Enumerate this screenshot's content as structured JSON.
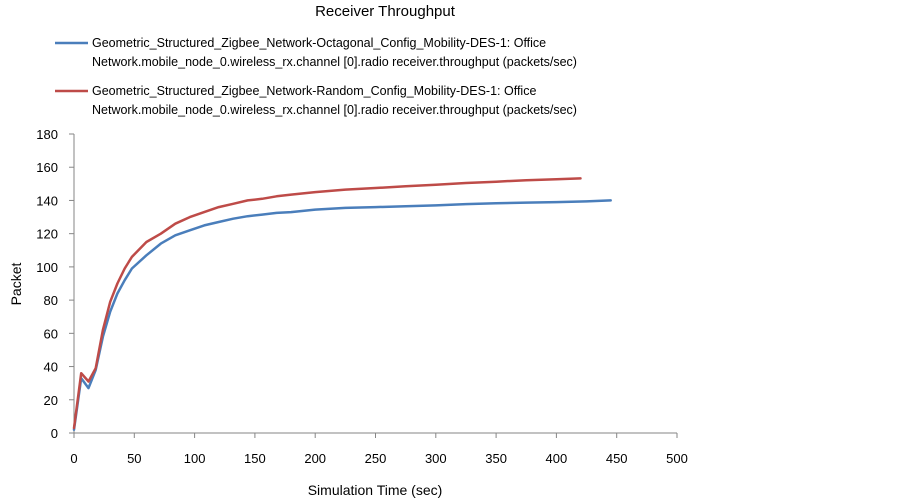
{
  "chart_data": {
    "type": "line",
    "title": "Receiver Throughput",
    "xlabel": "Simulation Time (sec)",
    "ylabel": "Packet",
    "xlim": [
      0,
      500
    ],
    "ylim": [
      0,
      180
    ],
    "x_ticks": [
      0,
      50,
      100,
      150,
      200,
      250,
      300,
      350,
      400,
      450,
      500
    ],
    "y_ticks": [
      0,
      20,
      40,
      60,
      80,
      100,
      120,
      140,
      160,
      180
    ],
    "grid": false,
    "legend_position": "top",
    "series": [
      {
        "name_lines": [
          "Geometric_Structured_Zigbee_Network-Octagonal_Config_Mobility-DES-1: Office",
          "Network.mobile_node_0.wireless_rx.channel [0].radio receiver.throughput (packets/sec)"
        ],
        "color": "#4a7ebb",
        "points": [
          [
            0,
            2
          ],
          [
            6,
            33
          ],
          [
            12,
            27
          ],
          [
            18,
            38
          ],
          [
            24,
            58
          ],
          [
            30,
            73
          ],
          [
            36,
            84
          ],
          [
            42,
            92
          ],
          [
            48,
            99
          ],
          [
            60,
            107
          ],
          [
            72,
            114
          ],
          [
            84,
            119
          ],
          [
            96,
            122
          ],
          [
            108,
            125
          ],
          [
            120,
            127
          ],
          [
            132,
            129
          ],
          [
            144,
            130.5
          ],
          [
            156,
            131.5
          ],
          [
            168,
            132.5
          ],
          [
            180,
            133
          ],
          [
            200,
            134.5
          ],
          [
            225,
            135.5
          ],
          [
            250,
            136
          ],
          [
            275,
            136.5
          ],
          [
            300,
            137
          ],
          [
            325,
            137.8
          ],
          [
            350,
            138.3
          ],
          [
            375,
            138.7
          ],
          [
            400,
            139
          ],
          [
            425,
            139.4
          ],
          [
            445,
            140
          ]
        ]
      },
      {
        "name_lines": [
          "Geometric_Structured_Zigbee_Network-Random_Config_Mobility-DES-1: Office",
          "Network.mobile_node_0.wireless_rx.channel [0].radio receiver.throughput (packets/sec)"
        ],
        "color": "#be4b48",
        "points": [
          [
            0,
            3
          ],
          [
            6,
            36
          ],
          [
            12,
            31
          ],
          [
            18,
            39
          ],
          [
            24,
            62
          ],
          [
            30,
            79
          ],
          [
            36,
            90
          ],
          [
            42,
            99
          ],
          [
            48,
            106
          ],
          [
            60,
            115
          ],
          [
            72,
            120
          ],
          [
            84,
            126
          ],
          [
            96,
            130
          ],
          [
            108,
            133
          ],
          [
            120,
            136
          ],
          [
            132,
            138
          ],
          [
            144,
            140
          ],
          [
            156,
            141
          ],
          [
            168,
            142.5
          ],
          [
            180,
            143.5
          ],
          [
            200,
            145
          ],
          [
            225,
            146.5
          ],
          [
            250,
            147.5
          ],
          [
            275,
            148.5
          ],
          [
            300,
            149.5
          ],
          [
            325,
            150.5
          ],
          [
            350,
            151.3
          ],
          [
            375,
            152.2
          ],
          [
            400,
            152.8
          ],
          [
            420,
            153.3
          ]
        ]
      }
    ]
  }
}
